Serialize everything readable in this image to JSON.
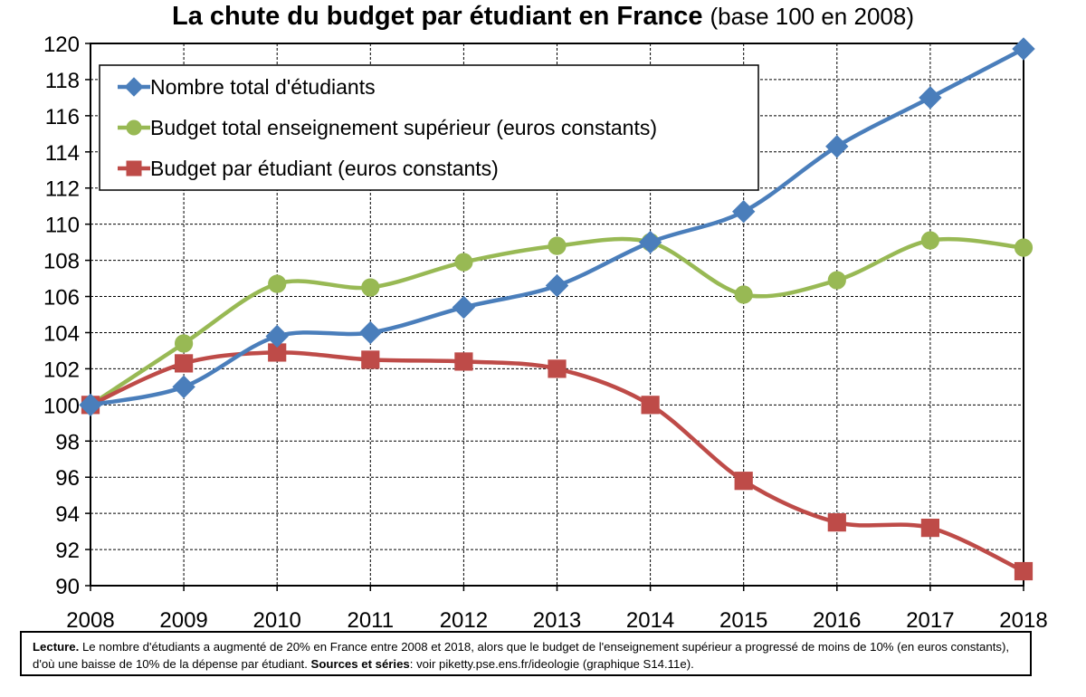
{
  "title": "La chute du budget par étudiant en France",
  "subtitle": "(base 100 en 2008)",
  "chart_data": {
    "type": "line",
    "title": "La chute du budget par étudiant en France",
    "subtitle": "(base 100 en 2008)",
    "x": [
      2008,
      2009,
      2010,
      2011,
      2012,
      2013,
      2014,
      2015,
      2016,
      2017,
      2018
    ],
    "x_tick_labels": [
      "2008",
      "2009",
      "2010",
      "2011",
      "2012",
      "2013",
      "2014",
      "2015",
      "2016",
      "2017",
      "2018"
    ],
    "ylim": [
      90,
      120
    ],
    "y_ticks": [
      90,
      92,
      94,
      96,
      98,
      100,
      102,
      104,
      106,
      108,
      110,
      112,
      114,
      116,
      118,
      120
    ],
    "y_tick_labels": [
      "90",
      "92",
      "94",
      "96",
      "98",
      "100",
      "102",
      "104",
      "106",
      "108",
      "110",
      "112",
      "114",
      "116",
      "118",
      "120"
    ],
    "grid": true,
    "legend_position": "top-left",
    "series": [
      {
        "name": "Nombre total d'étudiants",
        "color": "#4a7ebb",
        "marker": "diamond",
        "values": [
          100.0,
          101.0,
          103.8,
          104.0,
          105.4,
          106.6,
          109.0,
          110.7,
          114.3,
          117.0,
          119.7
        ]
      },
      {
        "name": "Budget total enseignement supérieur (euros constants)",
        "color": "#98b954",
        "marker": "circle",
        "values": [
          100.0,
          103.4,
          106.7,
          106.5,
          107.9,
          108.8,
          109.0,
          106.1,
          106.9,
          109.1,
          108.7
        ]
      },
      {
        "name": "Budget par étudiant (euros constants)",
        "color": "#be4b48",
        "marker": "square",
        "values": [
          100.0,
          102.3,
          102.9,
          102.5,
          102.4,
          102.0,
          100.0,
          95.8,
          93.5,
          93.2,
          90.8
        ]
      }
    ]
  },
  "lecture": {
    "label": "Lecture.",
    "text": " Le nombre d'étudiants a augmenté de 20% en France entre 2008 et 2018, alors que le budget de l'enseignement supérieur a progressé de moins de 10% (en euros constants), d'où une baisse de 10% de la dépense par étudiant. ",
    "sources_label": "Sources et séries",
    "sources_text": ": voir piketty.pse.ens.fr/ideologie (graphique S14.11e)."
  }
}
